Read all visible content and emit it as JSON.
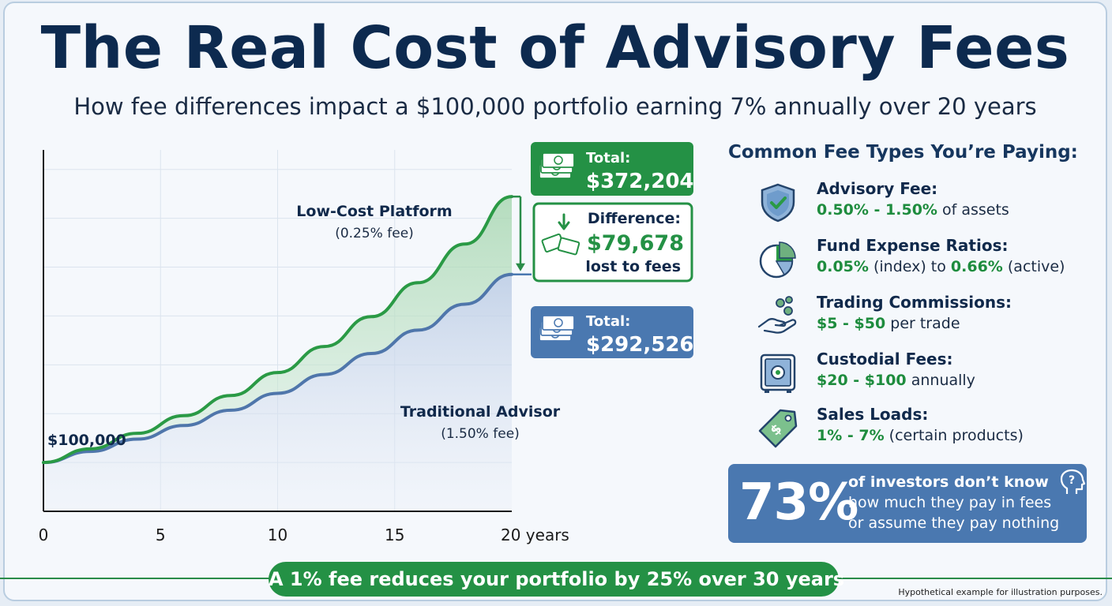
{
  "header": {
    "title": "The Real Cost of Advisory Fees",
    "subtitle": "How fee differences impact a $100,000 portfolio earning 7% annually over 20 years"
  },
  "chart_data": {
    "type": "area",
    "x_ticks": [
      "0",
      "5",
      "10",
      "15",
      "20 years"
    ],
    "x_tick_values": [
      0,
      5,
      10,
      15,
      20
    ],
    "xlim": [
      0,
      20
    ],
    "ylim": [
      50000,
      420000
    ],
    "grid": true,
    "start_label": "$100,000",
    "series": [
      {
        "name": "Low-Cost Platform",
        "fee_label": "(0.25% fee)",
        "color": "#2a9a45",
        "x": [
          0,
          2,
          4,
          6,
          8,
          10,
          12,
          14,
          16,
          18,
          20
        ],
        "values": [
          100000,
          113950,
          129830,
          147920,
          168540,
          192040,
          218790,
          249290,
          284040,
          323630,
          372204
        ]
      },
      {
        "name": "Traditional Advisor",
        "fee_label": "(1.50% fee)",
        "color": "#4f76ab",
        "x": [
          0,
          2,
          4,
          6,
          8,
          10,
          12,
          14,
          16,
          18,
          20
        ],
        "values": [
          100000,
          111300,
          123880,
          137880,
          153460,
          170800,
          190100,
          211590,
          235500,
          262110,
          292526
        ]
      }
    ],
    "callouts": {
      "top": {
        "label": "Total:",
        "value": "$372,204"
      },
      "difference": {
        "label": "Difference:",
        "value": "$79,678",
        "note": "lost to fees"
      },
      "bottom": {
        "label": "Total:",
        "value": "$292,526"
      }
    }
  },
  "fees": {
    "title": "Common Fee Types You’re Paying:",
    "items": [
      {
        "icon": "shield-check-icon",
        "name": "Advisory Fee:",
        "parts": [
          [
            "0.50% - 1.50%",
            true
          ],
          [
            " of assets",
            false
          ]
        ]
      },
      {
        "icon": "pie-chart-icon",
        "name": "Fund Expense Ratios:",
        "parts": [
          [
            "0.05%",
            true
          ],
          [
            " (index) to ",
            false
          ],
          [
            "0.66%",
            true
          ],
          [
            " (active)",
            false
          ]
        ]
      },
      {
        "icon": "hand-coins-icon",
        "name": "Trading Commissions:",
        "parts": [
          [
            "$5 - $50",
            true
          ],
          [
            " per trade",
            false
          ]
        ]
      },
      {
        "icon": "safe-icon",
        "name": "Custodial Fees:",
        "parts": [
          [
            "$20 - $100",
            true
          ],
          [
            " annually",
            false
          ]
        ]
      },
      {
        "icon": "price-tag-icon",
        "name": "Sales Loads:",
        "parts": [
          [
            "1% - 7%",
            true
          ],
          [
            " (certain products)",
            false
          ]
        ]
      }
    ]
  },
  "stat": {
    "number": "73%",
    "line1": "of investors don’t know",
    "line2": "how much they pay in fees",
    "line3": "or assume they pay nothing"
  },
  "footer": {
    "banner": "A 1% fee reduces your portfolio by 25% over 30 years",
    "disclaimer": "Hypothetical example for illustration purposes."
  },
  "colors": {
    "green": "#249145",
    "blue": "#4a78b0",
    "navy": "#0d2a4f"
  }
}
